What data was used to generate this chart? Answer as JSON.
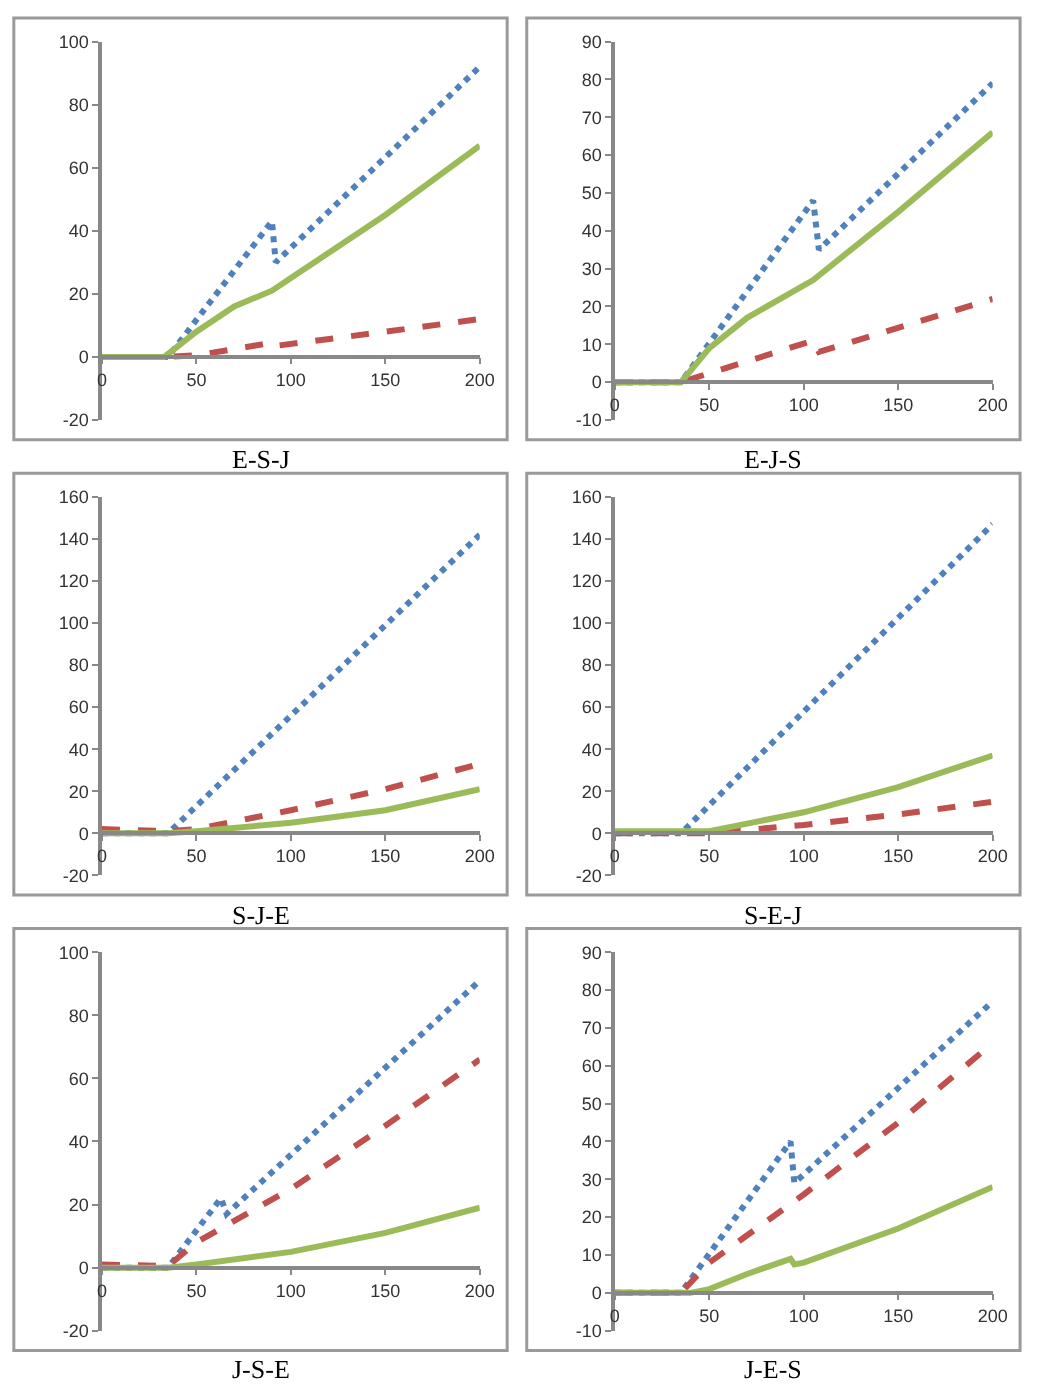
{
  "chart_data": [
    {
      "type": "line",
      "xlabel": "E-S-J",
      "xlim": [
        0,
        200
      ],
      "xticks": [
        0,
        50,
        100,
        150,
        200
      ],
      "ylim": [
        -20,
        100
      ],
      "yticks": [
        -20,
        0,
        20,
        40,
        60,
        80,
        100
      ],
      "marker": "none",
      "series": [
        {
          "color": "#4f81bd",
          "line_style": "dotted",
          "x": [
            0,
            35,
            90,
            92,
            200
          ],
          "values": [
            0,
            0,
            43,
            30,
            92
          ]
        },
        {
          "color": "#c0504d",
          "line_style": "dashed",
          "x": [
            0,
            35,
            50,
            90,
            92,
            150,
            200
          ],
          "values": [
            0,
            0,
            0.5,
            4.5,
            3.5,
            8,
            12
          ]
        },
        {
          "color": "#9bbb59",
          "line_style": "solid",
          "x": [
            0,
            33,
            50,
            70,
            90,
            100,
            150,
            200
          ],
          "values": [
            0,
            0,
            8,
            16,
            21,
            25,
            45,
            67
          ]
        }
      ]
    },
    {
      "type": "line",
      "xlabel": "E-J-S",
      "xlim": [
        0,
        200
      ],
      "xticks": [
        0,
        50,
        100,
        150,
        200
      ],
      "ylim": [
        -10,
        90
      ],
      "yticks": [
        -10,
        0,
        10,
        20,
        30,
        40,
        50,
        60,
        70,
        80,
        90
      ],
      "marker": "none",
      "series": [
        {
          "color": "#4f81bd",
          "line_style": "dotted",
          "x": [
            0,
            35,
            105,
            108,
            200
          ],
          "values": [
            0,
            0,
            48,
            35,
            79
          ]
        },
        {
          "color": "#c0504d",
          "line_style": "dashed",
          "x": [
            0,
            35,
            105,
            108,
            200
          ],
          "values": [
            0,
            0,
            11,
            8,
            22
          ]
        },
        {
          "color": "#9bbb59",
          "line_style": "solid",
          "x": [
            0,
            35,
            50,
            70,
            105,
            150,
            200
          ],
          "values": [
            0,
            0,
            9,
            17,
            27,
            45,
            66
          ]
        }
      ]
    },
    {
      "type": "line",
      "xlabel": "S-J-E",
      "xlim": [
        0,
        200
      ],
      "xticks": [
        0,
        50,
        100,
        150,
        200
      ],
      "ylim": [
        -20,
        160
      ],
      "yticks": [
        -20,
        0,
        20,
        40,
        60,
        80,
        100,
        120,
        140,
        160
      ],
      "marker": "none",
      "series": [
        {
          "color": "#4f81bd",
          "line_style": "dotted",
          "x": [
            0,
            35,
            200
          ],
          "values": [
            0,
            0,
            142
          ]
        },
        {
          "color": "#c0504d",
          "line_style": "dashed",
          "x": [
            0,
            35,
            50,
            100,
            150,
            200
          ],
          "values": [
            2,
            1,
            2,
            11,
            21,
            33
          ]
        },
        {
          "color": "#9bbb59",
          "line_style": "solid",
          "x": [
            0,
            35,
            50,
            100,
            150,
            200
          ],
          "values": [
            0,
            0,
            1,
            5,
            11,
            21
          ]
        }
      ]
    },
    {
      "type": "line",
      "xlabel": "S-E-J",
      "xlim": [
        0,
        200
      ],
      "xticks": [
        0,
        50,
        100,
        150,
        200
      ],
      "ylim": [
        -20,
        160
      ],
      "yticks": [
        -20,
        0,
        20,
        40,
        60,
        80,
        100,
        120,
        140,
        160
      ],
      "marker": "none",
      "series": [
        {
          "color": "#4f81bd",
          "line_style": "dotted",
          "x": [
            0,
            35,
            200
          ],
          "values": [
            0,
            0,
            147
          ]
        },
        {
          "color": "#c0504d",
          "line_style": "dashed",
          "x": [
            0,
            50,
            100,
            150,
            200
          ],
          "values": [
            0,
            0,
            4,
            9,
            15
          ]
        },
        {
          "color": "#9bbb59",
          "line_style": "solid",
          "x": [
            0,
            40,
            50,
            100,
            150,
            200
          ],
          "values": [
            1,
            1,
            1,
            10,
            22,
            37
          ]
        }
      ]
    },
    {
      "type": "line",
      "xlabel": "J-S-E",
      "xlim": [
        0,
        200
      ],
      "xticks": [
        0,
        50,
        100,
        150,
        200
      ],
      "ylim": [
        -20,
        100
      ],
      "yticks": [
        -20,
        0,
        20,
        40,
        60,
        80,
        100
      ],
      "marker": "none",
      "series": [
        {
          "color": "#4f81bd",
          "line_style": "dotted",
          "x": [
            0,
            35,
            63,
            66,
            200
          ],
          "values": [
            0,
            0,
            22,
            17,
            91
          ]
        },
        {
          "color": "#c0504d",
          "line_style": "dashed",
          "x": [
            0,
            35,
            50,
            100,
            150,
            200
          ],
          "values": [
            1,
            0.5,
            8,
            25,
            45,
            66
          ]
        },
        {
          "color": "#9bbb59",
          "line_style": "solid",
          "x": [
            0,
            35,
            50,
            100,
            150,
            200
          ],
          "values": [
            0,
            0,
            1,
            5,
            11,
            19
          ]
        }
      ]
    },
    {
      "type": "line",
      "xlabel": "J-E-S",
      "xlim": [
        0,
        200
      ],
      "xticks": [
        0,
        50,
        100,
        150,
        200
      ],
      "ylim": [
        -10,
        90
      ],
      "yticks": [
        -10,
        0,
        10,
        20,
        30,
        40,
        50,
        60,
        70,
        80,
        90
      ],
      "marker": "none",
      "series": [
        {
          "color": "#4f81bd",
          "line_style": "dotted",
          "x": [
            0,
            35,
            93,
            95,
            200
          ],
          "values": [
            0,
            0,
            40,
            29,
            77
          ]
        },
        {
          "color": "#c0504d",
          "line_style": "dashed",
          "x": [
            0,
            35,
            50,
            100,
            150,
            200
          ],
          "values": [
            0,
            0,
            8,
            26,
            45,
            66
          ]
        },
        {
          "color": "#9bbb59",
          "line_style": "solid",
          "x": [
            0,
            40,
            50,
            70,
            93,
            95,
            100,
            150,
            200
          ],
          "values": [
            0,
            0,
            1,
            5,
            9,
            7.5,
            8,
            17,
            28
          ]
        }
      ]
    }
  ]
}
